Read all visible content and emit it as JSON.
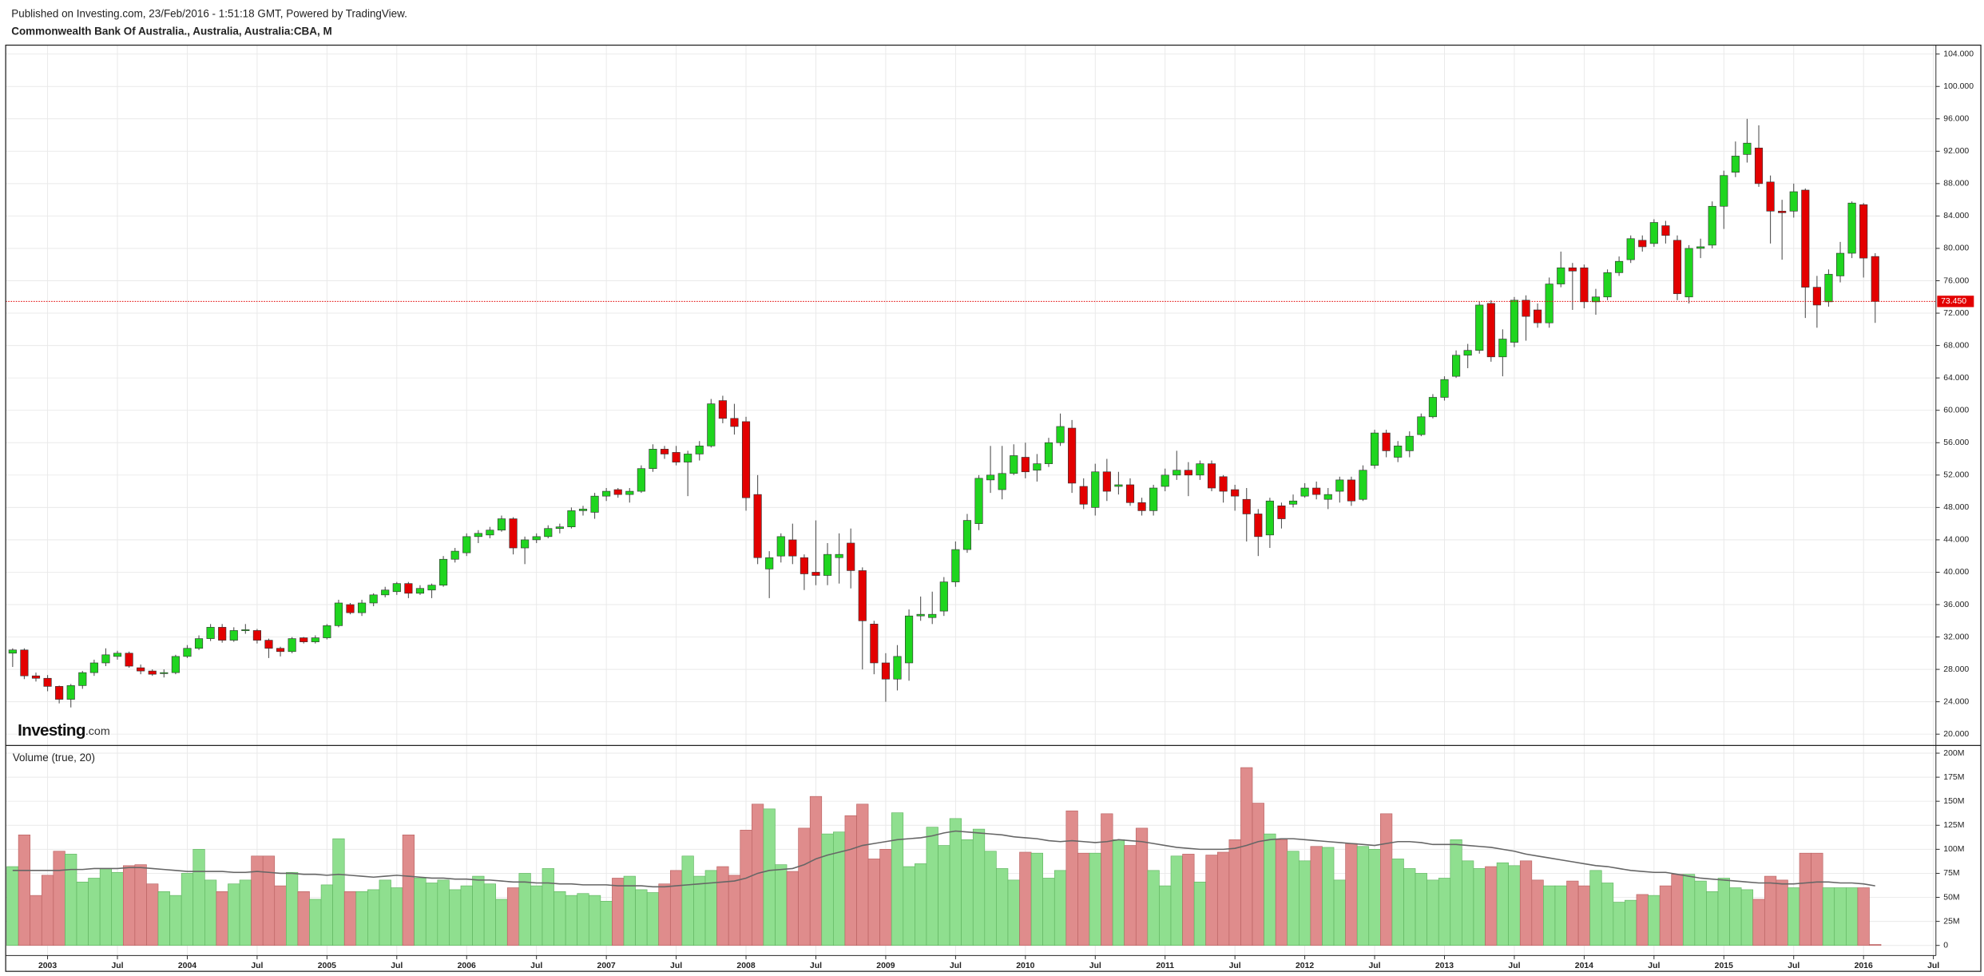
{
  "chart_data": {
    "type": "candlestick",
    "publisher_note": "Published on Investing.com, 23/Feb/2016 - 1:51:18 GMT, Powered by TradingView.",
    "title": "Commonwealth Bank Of Australia., Australia, Australia:CBA, M",
    "watermark": {
      "brand": "Investing",
      "suffix": ".com"
    },
    "categories": [
      null,
      null,
      null,
      "2003",
      null,
      null,
      null,
      null,
      null,
      "Jul",
      null,
      null,
      null,
      null,
      null,
      "2004",
      null,
      null,
      null,
      null,
      null,
      "Jul",
      null,
      null,
      null,
      null,
      null,
      "2005",
      null,
      null,
      null,
      null,
      null,
      "Jul",
      null,
      null,
      null,
      null,
      null,
      "2006",
      null,
      null,
      null,
      null,
      null,
      "Jul",
      null,
      null,
      null,
      null,
      null,
      "2007",
      null,
      null,
      null,
      null,
      null,
      "Jul",
      null,
      null,
      null,
      null,
      null,
      "2008",
      null,
      null,
      null,
      null,
      null,
      "Jul",
      null,
      null,
      null,
      null,
      null,
      "2009",
      null,
      null,
      null,
      null,
      null,
      "Jul",
      null,
      null,
      null,
      null,
      null,
      "2010",
      null,
      null,
      null,
      null,
      null,
      "Jul",
      null,
      null,
      null,
      null,
      null,
      "2011",
      null,
      null,
      null,
      null,
      null,
      "Jul",
      null,
      null,
      null,
      null,
      null,
      "2012",
      null,
      null,
      null,
      null,
      null,
      "Jul",
      null,
      null,
      null,
      null,
      null,
      "2013",
      null,
      null,
      null,
      null,
      null,
      "Jul",
      null,
      null,
      null,
      null,
      null,
      "2014",
      null,
      null,
      null,
      null,
      null,
      "Jul",
      null,
      null,
      null,
      null,
      null,
      "2015",
      null,
      null,
      null,
      null,
      null,
      "Jul",
      null,
      null,
      null,
      null,
      null,
      "2016",
      null,
      null,
      null,
      null,
      null,
      "Jul"
    ],
    "open": [
      30.0,
      30.4,
      27.2,
      26.9,
      25.9,
      24.3,
      26.0,
      27.6,
      28.8,
      29.6,
      30.0,
      28.2,
      27.8,
      27.5,
      27.6,
      29.6,
      30.6,
      31.8,
      33.2,
      31.6,
      32.8,
      32.8,
      31.6,
      30.6,
      30.2,
      31.9,
      31.4,
      31.9,
      33.4,
      36.0,
      35.0,
      36.2,
      37.2,
      37.6,
      38.6,
      37.4,
      37.8,
      38.4,
      41.6,
      42.4,
      44.4,
      44.6,
      45.2,
      46.6,
      43.0,
      44.0,
      44.4,
      45.4,
      45.6,
      47.6,
      47.4,
      49.4,
      50.2,
      49.6,
      50.0,
      52.8,
      55.2,
      54.8,
      53.6,
      54.6,
      55.6,
      61.2,
      59.0,
      58.6,
      49.6,
      40.4,
      42.0,
      44.0,
      41.8,
      40.0,
      39.6,
      41.8,
      43.6,
      40.2,
      33.6,
      28.8,
      26.8,
      28.8,
      34.6,
      34.4,
      35.2,
      38.8,
      42.8,
      46.0,
      51.4,
      50.2,
      52.2,
      54.2,
      52.6,
      53.4,
      56.0,
      57.8,
      50.6,
      48.0,
      52.4,
      50.6,
      50.8,
      48.6,
      47.6,
      50.6,
      52.0,
      52.6,
      52.0,
      53.4,
      51.8,
      50.2,
      49.0,
      47.2,
      44.6,
      48.2,
      48.4,
      49.4,
      50.4,
      49.0,
      50.0,
      51.4,
      49.0,
      53.2,
      57.2,
      54.2,
      55.0,
      57.0,
      59.2,
      61.6,
      64.2,
      66.8,
      67.4,
      73.2,
      66.6,
      68.4,
      73.6,
      72.4,
      70.8,
      75.6,
      77.6,
      77.6,
      73.4,
      74.0,
      77.0,
      78.6,
      81.0,
      80.6,
      82.8,
      81.0,
      74.0,
      80.0,
      80.4,
      85.2,
      89.4,
      91.6,
      92.4,
      88.2,
      84.6,
      84.6,
      87.2,
      75.2,
      73.4,
      76.6,
      79.4,
      85.4,
      79.0,
      null,
      null,
      null,
      null,
      null
    ],
    "high": [
      30.6,
      30.6,
      27.6,
      27.3,
      26.0,
      26.2,
      27.8,
      29.2,
      30.6,
      30.3,
      30.2,
      28.6,
      28.0,
      28.0,
      29.8,
      31.0,
      32.2,
      33.6,
      33.6,
      33.2,
      33.6,
      33.0,
      31.8,
      30.8,
      32.0,
      32.0,
      32.2,
      33.6,
      36.6,
      36.2,
      36.6,
      37.4,
      38.2,
      38.8,
      38.8,
      38.4,
      38.6,
      42.0,
      43.0,
      44.8,
      45.2,
      45.6,
      47.0,
      46.8,
      44.4,
      44.8,
      45.8,
      46.0,
      48.0,
      48.2,
      49.8,
      50.4,
      50.4,
      50.4,
      53.2,
      55.8,
      55.6,
      55.6,
      55.0,
      56.2,
      61.4,
      61.8,
      60.8,
      59.2,
      52.0,
      42.6,
      44.8,
      46.0,
      42.2,
      46.4,
      43.6,
      44.8,
      45.4,
      40.6,
      34.0,
      30.0,
      31.0,
      35.4,
      37.0,
      37.6,
      39.4,
      43.8,
      47.2,
      52.0,
      55.6,
      55.6,
      55.8,
      56.0,
      54.6,
      56.6,
      59.6,
      58.8,
      51.6,
      53.4,
      54.0,
      52.4,
      51.6,
      49.2,
      50.8,
      52.8,
      55.0,
      53.6,
      53.8,
      53.8,
      52.0,
      50.8,
      50.4,
      47.8,
      49.2,
      48.6,
      49.6,
      51.0,
      51.2,
      50.4,
      51.8,
      51.8,
      53.2,
      57.6,
      57.6,
      56.2,
      57.4,
      59.6,
      62.0,
      64.2,
      67.4,
      68.2,
      73.4,
      73.6,
      70.0,
      74.0,
      74.2,
      73.2,
      76.4,
      79.6,
      78.2,
      78.0,
      75.0,
      77.4,
      79.0,
      81.6,
      81.6,
      83.6,
      83.4,
      81.6,
      80.4,
      81.2,
      85.8,
      89.6,
      93.2,
      96.0,
      95.2,
      89.0,
      86.0,
      88.0,
      87.4,
      76.6,
      77.4,
      80.8,
      85.8,
      85.6,
      79.4,
      null,
      null,
      null,
      null,
      null
    ],
    "low": [
      28.3,
      26.8,
      26.5,
      25.3,
      23.8,
      23.3,
      25.6,
      27.2,
      28.4,
      29.2,
      28.2,
      27.4,
      27.2,
      27.0,
      27.4,
      29.4,
      30.4,
      31.5,
      31.3,
      31.4,
      32.4,
      31.2,
      29.4,
      29.6,
      30.0,
      31.2,
      31.2,
      31.7,
      33.2,
      34.8,
      34.6,
      35.8,
      36.9,
      37.2,
      36.8,
      37.2,
      36.8,
      38.2,
      41.2,
      42.0,
      43.6,
      44.2,
      45.0,
      42.2,
      41.0,
      43.6,
      44.2,
      44.8,
      45.4,
      47.0,
      46.6,
      48.8,
      49.2,
      48.6,
      49.8,
      52.4,
      54.0,
      53.2,
      49.4,
      53.8,
      55.4,
      58.4,
      57.0,
      47.6,
      41.0,
      36.8,
      41.2,
      41.0,
      37.8,
      38.4,
      38.4,
      38.6,
      38.0,
      28.0,
      27.4,
      24.0,
      25.4,
      26.6,
      34.0,
      33.6,
      34.6,
      38.2,
      42.4,
      45.2,
      49.8,
      49.0,
      52.0,
      51.6,
      51.2,
      53.0,
      55.6,
      49.8,
      47.8,
      47.0,
      48.8,
      49.6,
      48.2,
      47.0,
      47.0,
      50.0,
      51.4,
      49.4,
      51.4,
      50.0,
      48.6,
      47.6,
      43.8,
      42.0,
      43.0,
      45.4,
      48.0,
      49.2,
      49.0,
      47.8,
      48.6,
      48.2,
      48.8,
      52.8,
      54.2,
      53.6,
      54.2,
      56.8,
      59.0,
      61.2,
      64.0,
      65.2,
      67.0,
      66.0,
      64.2,
      67.8,
      68.6,
      70.2,
      70.2,
      75.2,
      72.4,
      72.6,
      71.8,
      73.6,
      76.6,
      78.2,
      79.6,
      80.2,
      80.6,
      73.6,
      73.2,
      78.8,
      80.0,
      82.4,
      88.8,
      90.6,
      87.6,
      80.6,
      78.6,
      83.8,
      71.4,
      70.2,
      72.8,
      75.8,
      78.8,
      76.4,
      70.8,
      null,
      null,
      null,
      null,
      null
    ],
    "close": [
      30.4,
      27.2,
      26.9,
      25.9,
      24.3,
      26.0,
      27.6,
      28.8,
      29.8,
      30.0,
      28.4,
      27.8,
      27.4,
      27.6,
      29.6,
      30.6,
      31.8,
      33.2,
      31.6,
      32.8,
      32.9,
      31.6,
      30.6,
      30.2,
      31.8,
      31.4,
      31.9,
      33.4,
      36.2,
      35.0,
      36.2,
      37.2,
      37.8,
      38.6,
      37.4,
      38.0,
      38.4,
      41.6,
      42.6,
      44.4,
      44.8,
      45.2,
      46.6,
      43.0,
      44.0,
      44.4,
      45.4,
      45.6,
      47.6,
      47.8,
      49.4,
      50.0,
      49.6,
      50.0,
      52.8,
      55.2,
      54.6,
      53.6,
      54.6,
      55.6,
      60.8,
      59.0,
      58.0,
      49.2,
      41.8,
      41.8,
      44.4,
      42.0,
      39.8,
      39.6,
      42.2,
      42.2,
      40.2,
      34.0,
      28.8,
      26.8,
      29.6,
      34.6,
      34.8,
      34.8,
      38.8,
      42.8,
      46.4,
      51.6,
      52.0,
      52.2,
      54.4,
      52.4,
      53.4,
      56.0,
      58.0,
      51.0,
      48.4,
      52.4,
      50.0,
      50.8,
      48.6,
      47.6,
      50.4,
      52.0,
      52.6,
      52.0,
      53.4,
      50.4,
      50.0,
      49.4,
      47.2,
      44.4,
      48.8,
      46.6,
      48.8,
      50.4,
      49.6,
      49.6,
      51.4,
      48.8,
      52.6,
      57.2,
      55.0,
      55.6,
      56.8,
      59.2,
      61.6,
      63.8,
      66.8,
      67.4,
      73.0,
      66.6,
      68.8,
      73.6,
      71.6,
      70.8,
      75.6,
      77.6,
      77.2,
      73.4,
      74.0,
      77.0,
      78.4,
      81.2,
      80.2,
      83.2,
      81.6,
      74.4,
      80.0,
      80.2,
      85.2,
      89.0,
      91.4,
      93.0,
      88.0,
      84.6,
      84.4,
      87.0,
      75.2,
      73.0,
      76.8,
      79.4,
      85.6,
      78.8,
      73.45,
      null,
      null,
      null,
      null,
      null
    ],
    "up_color": "#1fd51f",
    "down_color": "#e30000",
    "wick_color": "#555555",
    "ylim": [
      18.6,
      105.1
    ],
    "yticks": [
      {
        "value": 20,
        "label": "20.000"
      },
      {
        "value": 24,
        "label": "24.000"
      },
      {
        "value": 28,
        "label": "28.000"
      },
      {
        "value": 32,
        "label": "32.000"
      },
      {
        "value": 36,
        "label": "36.000"
      },
      {
        "value": 40,
        "label": "40.000"
      },
      {
        "value": 44,
        "label": "44.000"
      },
      {
        "value": 48,
        "label": "48.000"
      },
      {
        "value": 52,
        "label": "52.000"
      },
      {
        "value": 56,
        "label": "56.000"
      },
      {
        "value": 60,
        "label": "60.000"
      },
      {
        "value": 64,
        "label": "64.000"
      },
      {
        "value": 68,
        "label": "68.000"
      },
      {
        "value": 72,
        "label": "72.000"
      },
      {
        "value": 76,
        "label": "76.000"
      },
      {
        "value": 80,
        "label": "80.000"
      },
      {
        "value": 84,
        "label": "84.000"
      },
      {
        "value": 88,
        "label": "88.000"
      },
      {
        "value": 92,
        "label": "92.000"
      },
      {
        "value": 96,
        "label": "96.000"
      },
      {
        "value": 100,
        "label": "100.000"
      },
      {
        "value": 104,
        "label": "104.000"
      }
    ],
    "last_price": {
      "value": 73.45,
      "label": "73.450"
    },
    "last_price_color": "#e30000",
    "grid": true,
    "volume": {
      "label": "Volume (true, 20)",
      "values": [
        82000000.0,
        115000000.0,
        52000000.0,
        73000000.0,
        98000000.0,
        95000000.0,
        66000000.0,
        70000000.0,
        80000000.0,
        76000000.0,
        83000000.0,
        84000000.0,
        64000000.0,
        56000000.0,
        52000000.0,
        75000000.0,
        100000000.0,
        68000000.0,
        56000000.0,
        64000000.0,
        68000000.0,
        93000000.0,
        93000000.0,
        62000000.0,
        76000000.0,
        56000000.0,
        48000000.0,
        63000000.0,
        111000000.0,
        56000000.0,
        56000000.0,
        58000000.0,
        68000000.0,
        60000000.0,
        115000000.0,
        70000000.0,
        65000000.0,
        68000000.0,
        58000000.0,
        62000000.0,
        72000000.0,
        64000000.0,
        48000000.0,
        60000000.0,
        75000000.0,
        62000000.0,
        80000000.0,
        56000000.0,
        52000000.0,
        54000000.0,
        52000000.0,
        46000000.0,
        70000000.0,
        72000000.0,
        58000000.0,
        55000000.0,
        64000000.0,
        78000000.0,
        93000000.0,
        72000000.0,
        78000000.0,
        82000000.0,
        73000000.0,
        120000000.0,
        147000000.0,
        142000000.0,
        84000000.0,
        77000000.0,
        122000000.0,
        155000000.0,
        116000000.0,
        118000000.0,
        135000000.0,
        147000000.0,
        90000000.0,
        100000000.0,
        138000000.0,
        82000000.0,
        85000000.0,
        123000000.0,
        104000000.0,
        132000000.0,
        110000000.0,
        121000000.0,
        98000000.0,
        80000000.0,
        68000000.0,
        97000000.0,
        96000000.0,
        70000000.0,
        78000000.0,
        140000000.0,
        96000000.0,
        96000000.0,
        137000000.0,
        110000000.0,
        104000000.0,
        122000000.0,
        78000000.0,
        62000000.0,
        93000000.0,
        95000000.0,
        66000000.0,
        94000000.0,
        97000000.0,
        110000000.0,
        185000000.0,
        148000000.0,
        116000000.0,
        110000000.0,
        98000000.0,
        88000000.0,
        103000000.0,
        102000000.0,
        68000000.0,
        106000000.0,
        103000000.0,
        100000000.0,
        137000000.0,
        90000000.0,
        80000000.0,
        75000000.0,
        68000000.0,
        70000000.0,
        110000000.0,
        88000000.0,
        80000000.0,
        82000000.0,
        86000000.0,
        83000000.0,
        88000000.0,
        68000000.0,
        62000000.0,
        62000000.0,
        67000000.0,
        62000000.0,
        78000000.0,
        65000000.0,
        45000000.0,
        47000000.0,
        53000000.0,
        52000000.0,
        62000000.0,
        74000000.0,
        74000000.0,
        67000000.0,
        56000000.0,
        70000000.0,
        60000000.0,
        58000000.0,
        48000000.0,
        72000000.0,
        68000000.0,
        60000000.0,
        96000000.0,
        96000000.0,
        60000000.0,
        60000000.0,
        60000000.0,
        60000000.0,
        1000000.0,
        null,
        null,
        null,
        null,
        null
      ],
      "ma": [
        78000000.0,
        78000000.0,
        78000000.0,
        78000000.0,
        78000000.0,
        79000000.0,
        79000000.0,
        80000000.0,
        80000000.0,
        80000000.0,
        81000000.0,
        81000000.0,
        80000000.0,
        79000000.0,
        78000000.0,
        77000000.0,
        77000000.0,
        77000000.0,
        77000000.0,
        76000000.0,
        76000000.0,
        77000000.0,
        76000000.0,
        75000000.0,
        75000000.0,
        74000000.0,
        74000000.0,
        73000000.0,
        74000000.0,
        73000000.0,
        72000000.0,
        71000000.0,
        72000000.0,
        73000000.0,
        72000000.0,
        71000000.0,
        70000000.0,
        70000000.0,
        69000000.0,
        69000000.0,
        68000000.0,
        68000000.0,
        67000000.0,
        66000000.0,
        66000000.0,
        65000000.0,
        65000000.0,
        64000000.0,
        64000000.0,
        63000000.0,
        63000000.0,
        63000000.0,
        62000000.0,
        62000000.0,
        62000000.0,
        61000000.0,
        61000000.0,
        62000000.0,
        63000000.0,
        64000000.0,
        65000000.0,
        66000000.0,
        67000000.0,
        70000000.0,
        75000000.0,
        78000000.0,
        79000000.0,
        80000000.0,
        84000000.0,
        90000000.0,
        94000000.0,
        97000000.0,
        100000000.0,
        104000000.0,
        106000000.0,
        108000000.0,
        110000000.0,
        111000000.0,
        112000000.0,
        114000000.0,
        117000000.0,
        119000000.0,
        118000000.0,
        117000000.0,
        116000000.0,
        115000000.0,
        113000000.0,
        112000000.0,
        111000000.0,
        109000000.0,
        108000000.0,
        109000000.0,
        108000000.0,
        107000000.0,
        108000000.0,
        110000000.0,
        109000000.0,
        108000000.0,
        106000000.0,
        104000000.0,
        102000000.0,
        101000000.0,
        100000000.0,
        100000000.0,
        100000000.0,
        101000000.0,
        104000000.0,
        108000000.0,
        110000000.0,
        111000000.0,
        111000000.0,
        110000000.0,
        109000000.0,
        108000000.0,
        107000000.0,
        106000000.0,
        105000000.0,
        104000000.0,
        106000000.0,
        108000000.0,
        108000000.0,
        107000000.0,
        105000000.0,
        105000000.0,
        105000000.0,
        104000000.0,
        103000000.0,
        102000000.0,
        100000000.0,
        98000000.0,
        95000000.0,
        93000000.0,
        91000000.0,
        89000000.0,
        87000000.0,
        85000000.0,
        83000000.0,
        82000000.0,
        80000000.0,
        78000000.0,
        77000000.0,
        76000000.0,
        76000000.0,
        74000000.0,
        72000000.0,
        70000000.0,
        69000000.0,
        68000000.0,
        67000000.0,
        66000000.0,
        65000000.0,
        65000000.0,
        64000000.0,
        64000000.0,
        65000000.0,
        66000000.0,
        66000000.0,
        65000000.0,
        65000000.0,
        64000000.0,
        62000000.0,
        null,
        null,
        null,
        null,
        null
      ],
      "up_color": "#8fdf8f",
      "down_color": "#df8c8c",
      "ma_color": "#666666",
      "ylim": [
        -10500000.0,
        208000000.0
      ],
      "yticks": [
        0,
        {
          "value": 25000000.0,
          "label": "25M"
        },
        {
          "value": 50000000.0,
          "label": "50M"
        },
        {
          "value": 75000000.0,
          "label": "75M"
        },
        {
          "value": 100000000.0,
          "label": "100M"
        },
        {
          "value": 125000000.0,
          "label": "125M"
        },
        {
          "value": 150000000.0,
          "label": "150M"
        },
        {
          "value": 175000000.0,
          "label": "175M"
        },
        {
          "value": 200000000.0,
          "label": "200M"
        }
      ]
    }
  }
}
